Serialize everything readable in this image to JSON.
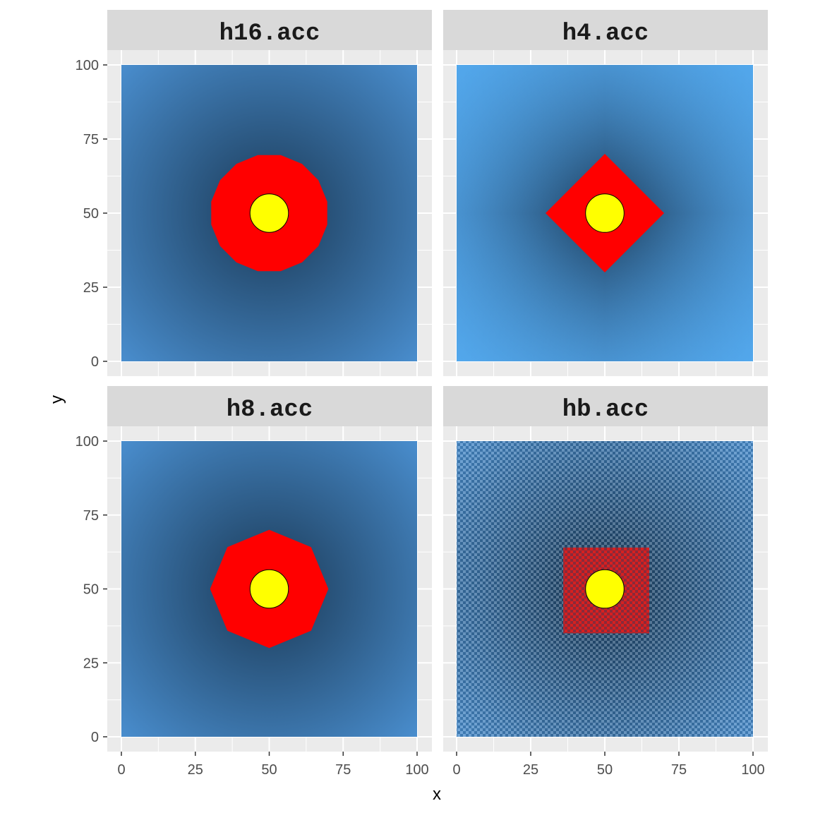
{
  "chart_data": {
    "type": "heatmap",
    "xlabel": "x",
    "ylabel": "y",
    "xlim": [
      0,
      100
    ],
    "ylim": [
      0,
      100
    ],
    "x_ticks": [
      0,
      25,
      50,
      75,
      100
    ],
    "y_ticks": [
      0,
      25,
      50,
      75,
      100
    ],
    "grid": true,
    "layout": "2x2 facets",
    "colors": {
      "panel_background": "#ebebeb",
      "strip_background": "#d9d9d9",
      "gradient_low": "#132b43",
      "gradient_high": "#56b1f7",
      "region": "#ff0000",
      "point": "#ffff00"
    },
    "panels": [
      {
        "name": "h16.acc",
        "region_shape": "16-neighbourhood (near circle)",
        "region_radius": 20,
        "point": {
          "x": 50,
          "y": 50,
          "radius": 6.5
        },
        "center": [
          50,
          50
        ]
      },
      {
        "name": "h4.acc",
        "region_shape": "4-neighbourhood (diamond)",
        "region_radius": 20,
        "point": {
          "x": 50,
          "y": 50,
          "radius": 6.5
        },
        "center": [
          50,
          50
        ]
      },
      {
        "name": "h8.acc",
        "region_shape": "8-neighbourhood (octagon)",
        "region_radius": 20,
        "point": {
          "x": 50,
          "y": 50,
          "radius": 6.5
        },
        "center": [
          50,
          50
        ]
      },
      {
        "name": "hb.acc",
        "region_shape": "square (checkered)",
        "region_range": {
          "x": [
            36,
            65
          ],
          "y": [
            35,
            64
          ]
        },
        "point": {
          "x": 50,
          "y": 50,
          "radius": 6.5
        },
        "center": [
          50,
          50
        ]
      }
    ]
  }
}
